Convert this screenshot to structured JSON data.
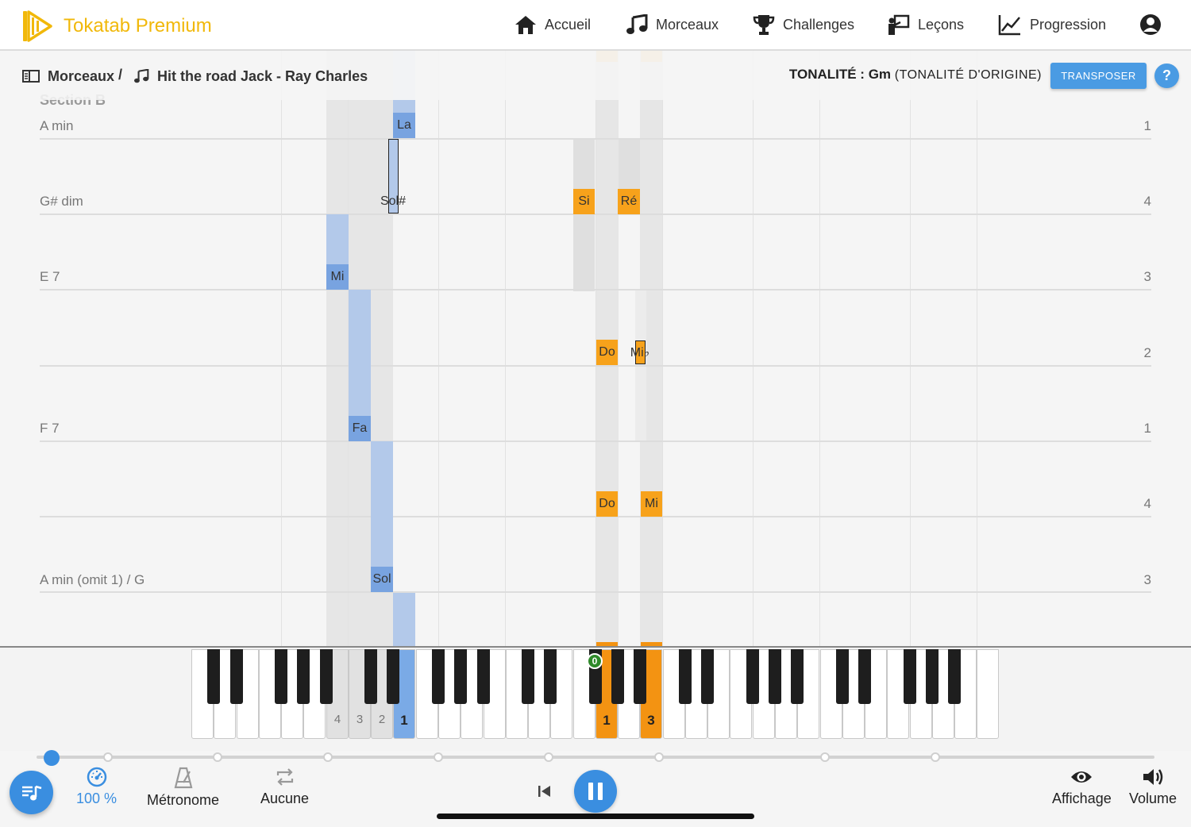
{
  "app": {
    "brand": "Tokatab Premium",
    "brand_color": "#f1b80a",
    "accent_color": "#3a8ee0"
  },
  "nav": [
    {
      "label": "Accueil",
      "icon": "home-icon"
    },
    {
      "label": "Morceaux",
      "icon": "music-note-icon"
    },
    {
      "label": "Challenges",
      "icon": "trophy-icon"
    },
    {
      "label": "Leçons",
      "icon": "teacher-board-icon"
    },
    {
      "label": "Progression",
      "icon": "chart-line-icon"
    },
    {
      "label": "",
      "icon": "account-circle-icon"
    }
  ],
  "breadcrumb": {
    "root": "Morceaux",
    "separator": "/",
    "song": "Hit the road Jack - Ray Charles"
  },
  "key": {
    "label": "TONALITÉ :",
    "value": "Gm",
    "note": "(TONALITÉ D'ORIGINE)",
    "transpose_label": "TRANSPOSER",
    "help_label": "?"
  },
  "score": {
    "section": "Section B",
    "rows": [
      {
        "chord": "A min",
        "beat": "1"
      },
      {
        "chord": "G# dim",
        "beat": "4"
      },
      {
        "chord": "E 7",
        "beat": "3"
      },
      {
        "chord": "",
        "beat": "2"
      },
      {
        "chord": "F 7",
        "beat": "1"
      },
      {
        "chord": "",
        "beat": "4"
      },
      {
        "chord": "A min (omit 1) / G",
        "beat": "3"
      }
    ],
    "notes": {
      "la": "La",
      "sol_sharp": "Sol#",
      "si": "Si",
      "re": "Ré",
      "mi": "Mi",
      "do": "Do",
      "mi_flat": "Mi♭",
      "fa": "Fa",
      "do2": "Do",
      "mi2": "Mi",
      "sol": "Sol"
    },
    "colors": {
      "left_hand": "#78a3e0",
      "right_hand": "#f7a21b"
    }
  },
  "piano": {
    "c_marker": "0",
    "fingers_left": [
      "4",
      "3",
      "2",
      "1"
    ],
    "fingers_right": [
      "1",
      "3"
    ]
  },
  "toolbar": {
    "speed": "100 %",
    "metronome": "Métronome",
    "loop": "Aucune",
    "display": "Affichage",
    "volume": "Volume"
  },
  "progress": {
    "position": 0.01
  }
}
